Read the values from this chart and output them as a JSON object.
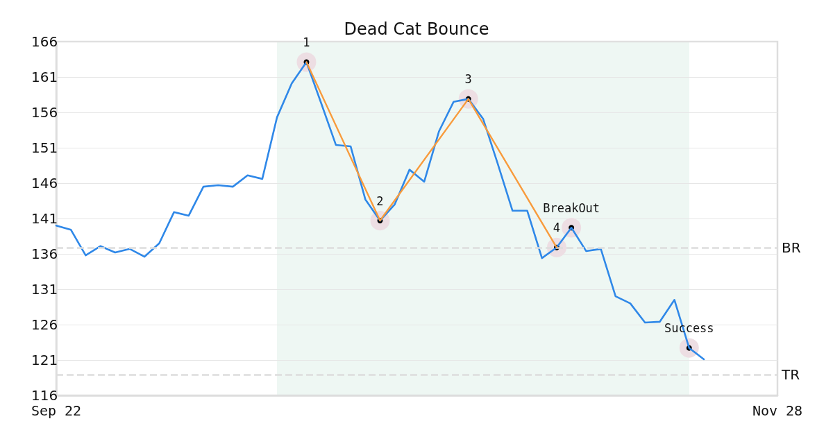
{
  "chart_data": {
    "type": "line",
    "title": "Dead Cat Bounce",
    "categories": [
      "Sep 22",
      null,
      null,
      null,
      null,
      null,
      null,
      null,
      null,
      null,
      null,
      null,
      null,
      null,
      null,
      null,
      null,
      null,
      null,
      null,
      null,
      null,
      null,
      null,
      null,
      null,
      null,
      null,
      null,
      null,
      null,
      null,
      null,
      null,
      null,
      null,
      null,
      null,
      null,
      null,
      null,
      null,
      null,
      null,
      null,
      null,
      null,
      null,
      null,
      "Nov 28"
    ],
    "ylim": [
      116,
      166
    ],
    "yticks": [
      116,
      121,
      126,
      131,
      136,
      141,
      146,
      151,
      156,
      161,
      166
    ],
    "series": [
      {
        "color": "#2f88e8",
        "values": [
          140.0,
          139.4,
          135.8,
          137.1,
          136.2,
          136.7,
          135.6,
          137.5,
          141.9,
          141.4,
          145.5,
          145.7,
          145.5,
          147.1,
          146.6,
          155.3,
          160.1,
          163.1,
          157.3,
          151.4,
          151.2,
          143.7,
          140.7,
          143.0,
          147.9,
          146.2,
          153.3,
          157.5,
          157.9,
          155.1,
          148.7,
          142.1,
          142.1,
          135.4,
          136.9,
          139.7,
          136.4,
          136.7,
          130.0,
          129.0,
          126.3,
          126.4,
          129.5,
          122.7,
          121.1,
          null,
          null,
          null,
          null,
          null
        ]
      },
      {
        "color": "#f89b3c",
        "values": [
          null,
          null,
          null,
          null,
          null,
          null,
          null,
          null,
          null,
          null,
          null,
          null,
          null,
          null,
          null,
          null,
          null,
          163.1,
          null,
          null,
          null,
          null,
          140.7,
          null,
          null,
          null,
          null,
          null,
          157.9,
          null,
          null,
          null,
          null,
          null,
          136.9,
          null,
          null,
          null,
          null,
          null,
          null,
          null,
          null,
          null,
          null,
          null,
          null,
          null,
          null,
          null
        ]
      },
      {
        "type": "scatter",
        "color": "#000000",
        "values": [
          null,
          null,
          null,
          null,
          null,
          null,
          null,
          null,
          null,
          null,
          null,
          null,
          null,
          null,
          null,
          null,
          null,
          163.1,
          null,
          null,
          null,
          null,
          140.7,
          null,
          null,
          null,
          null,
          null,
          157.9,
          null,
          null,
          null,
          null,
          null,
          136.9,
          139.7,
          null,
          null,
          null,
          null,
          null,
          null,
          null,
          122.7,
          null,
          null,
          null,
          null,
          null,
          null
        ]
      }
    ],
    "annotations": [
      {
        "text": "1",
        "y": 163.1
      },
      {
        "text": "2",
        "y": 140.7
      },
      {
        "text": "3",
        "y": 157.9
      },
      {
        "text": "4",
        "y": 136.9
      },
      {
        "text": "BreakOut",
        "y": 139.7
      },
      {
        "text": "Success",
        "y": 122.7
      }
    ],
    "ref_lines": [
      {
        "axis": "y",
        "value": 136.9,
        "label": "BR",
        "color": "#dddddd",
        "line_style": "dashed"
      },
      {
        "axis": "y",
        "value": 118.9,
        "label": "TR",
        "color": "#dddddd",
        "line_style": "dashed"
      }
    ],
    "grid": "y",
    "line_style": "solid"
  }
}
